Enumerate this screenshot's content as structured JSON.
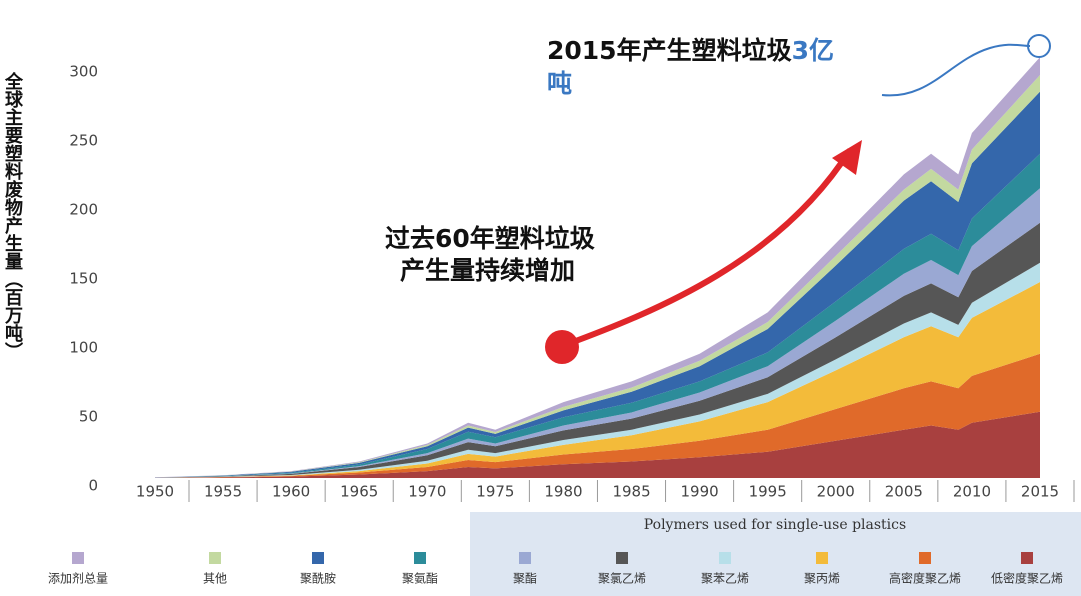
{
  "chart_data": {
    "type": "stacked_area",
    "y_label": "全球主要塑料废物产生量（百万吨）",
    "annotations": [
      [
        "2015年产生塑料垃圾",
        "3亿",
        "吨"
      ],
      [
        "过去60年塑料垃圾",
        "产生量持续增加"
      ]
    ],
    "legend_group_title": "Polymers used for single-use plastics",
    "x": [
      1950,
      1955,
      1960,
      1965,
      1970,
      1973,
      1975,
      1980,
      1985,
      1990,
      1995,
      2000,
      2005,
      2007,
      2009,
      2010,
      2015
    ],
    "xlim": [
      1950,
      2015
    ],
    "xticks": [
      1950,
      1955,
      1960,
      1965,
      1970,
      1975,
      1980,
      1985,
      1990,
      1995,
      2000,
      2005,
      2010,
      2015
    ],
    "ylim": [
      0,
      300
    ],
    "yticks": [
      0,
      50,
      100,
      150,
      200,
      250,
      300
    ],
    "series": [
      {
        "name": "低密度聚乙烯",
        "color": "#a8403f",
        "values": [
          0.1,
          0.4,
          1,
          2.5,
          5,
          8,
          7,
          10,
          12,
          15,
          19,
          27,
          35,
          38,
          35,
          40,
          48
        ]
      },
      {
        "name": "高密度聚乙烯",
        "color": "#e06a2a",
        "values": [
          0,
          0.2,
          0.5,
          1.5,
          3,
          5,
          4.5,
          7,
          9,
          12,
          16,
          23,
          30,
          32,
          30,
          34,
          42
        ]
      },
      {
        "name": "聚丙烯",
        "color": "#f3bb3a",
        "values": [
          0,
          0.1,
          0.3,
          1,
          2.5,
          4.5,
          4,
          7,
          10,
          14,
          20,
          28,
          37,
          40,
          37,
          42,
          52
        ]
      },
      {
        "name": "聚苯乙烯",
        "color": "#b7dfe9",
        "values": [
          0.1,
          0.2,
          0.4,
          1,
          2,
          3,
          2.5,
          3.5,
          4,
          5,
          6,
          8,
          10,
          10,
          9,
          11,
          14
        ]
      },
      {
        "name": "聚氯乙烯",
        "color": "#565656",
        "values": [
          0.1,
          0.3,
          0.8,
          2,
          4,
          5.5,
          5,
          7,
          8,
          10,
          12,
          16,
          20,
          21,
          20,
          23,
          29
        ]
      },
      {
        "name": "聚酯",
        "color": "#9aa8d3",
        "values": [
          0,
          0.1,
          0.3,
          0.6,
          1.5,
          2.5,
          2,
          3.5,
          4.5,
          6,
          8,
          12,
          16,
          17,
          16,
          18,
          25
        ]
      },
      {
        "name": "聚氨酯",
        "color": "#2c8c9a",
        "values": [
          0,
          0.2,
          0.5,
          1.2,
          3,
          5,
          4.5,
          6,
          7,
          8,
          10,
          14,
          18,
          19,
          18,
          20,
          25
        ]
      },
      {
        "name": "聚酰胺",
        "color": "#3467ab",
        "values": [
          0.1,
          0.3,
          0.7,
          1.2,
          2,
          3,
          2.5,
          5,
          8,
          11,
          17,
          26,
          35,
          38,
          35,
          40,
          45
        ]
      },
      {
        "name": "其他",
        "color": "#c3d9a0",
        "values": [
          0,
          0.1,
          0.2,
          0.4,
          1,
          1.5,
          1.3,
          2.5,
          3,
          4,
          5,
          7,
          8,
          9,
          9,
          10,
          12
        ]
      },
      {
        "name": "添加剂总量",
        "color": "#b5a7cf",
        "values": [
          0.1,
          0.1,
          0.3,
          0.6,
          1,
          2,
          1.7,
          3.5,
          4.5,
          5,
          7,
          9,
          11,
          11,
          11,
          12,
          13
        ]
      }
    ],
    "single_use_from": 4
  }
}
